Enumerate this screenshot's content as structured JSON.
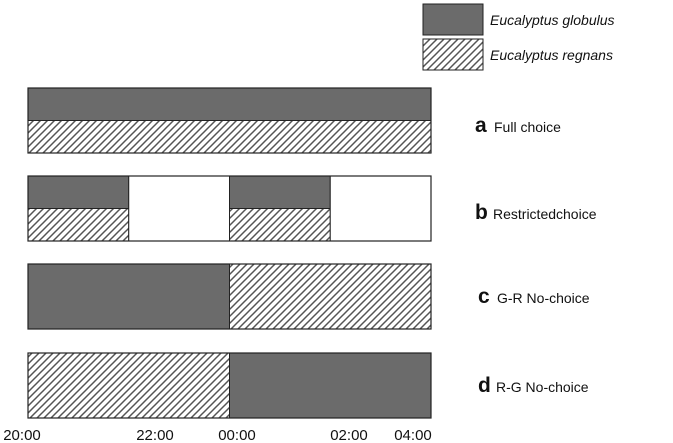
{
  "legend": [
    {
      "species": "Eucalyptus globulus",
      "pattern": "solid"
    },
    {
      "species": "Eucalyptus regnans",
      "pattern": "hatched"
    }
  ],
  "colors": {
    "globulus_fill": "#6b6b6b",
    "regnans_hatch": "#555555",
    "outline": "#222222",
    "background": "#ffffff"
  },
  "time_axis": {
    "ticks": [
      "20:00",
      "22:00",
      "00:00",
      "02:00",
      "04:00"
    ],
    "tick_hours": [
      0,
      2,
      4,
      6,
      8
    ],
    "span_hours": 8
  },
  "treatments": [
    {
      "letter": "a",
      "name": "Full choice",
      "segments": [
        {
          "start_h": 0,
          "end_h": 8,
          "top": "globulus",
          "bottom": "regnans"
        }
      ]
    },
    {
      "letter": "b",
      "name": "Restrictedchoice",
      "segments": [
        {
          "start_h": 0,
          "end_h": 2,
          "top": "globulus",
          "bottom": "regnans"
        },
        {
          "start_h": 2,
          "end_h": 4,
          "top": "none",
          "bottom": "none"
        },
        {
          "start_h": 4,
          "end_h": 6,
          "top": "globulus",
          "bottom": "regnans"
        },
        {
          "start_h": 6,
          "end_h": 8,
          "top": "none",
          "bottom": "none"
        }
      ]
    },
    {
      "letter": "c",
      "name": "G-R No-choice",
      "segments": [
        {
          "start_h": 0,
          "end_h": 4,
          "top": "globulus",
          "bottom": "globulus"
        },
        {
          "start_h": 4,
          "end_h": 8,
          "top": "regnans",
          "bottom": "regnans"
        }
      ]
    },
    {
      "letter": "d",
      "name": "R-G No-choice",
      "segments": [
        {
          "start_h": 0,
          "end_h": 4,
          "top": "regnans",
          "bottom": "regnans"
        },
        {
          "start_h": 4,
          "end_h": 8,
          "top": "globulus",
          "bottom": "globulus"
        }
      ]
    }
  ]
}
